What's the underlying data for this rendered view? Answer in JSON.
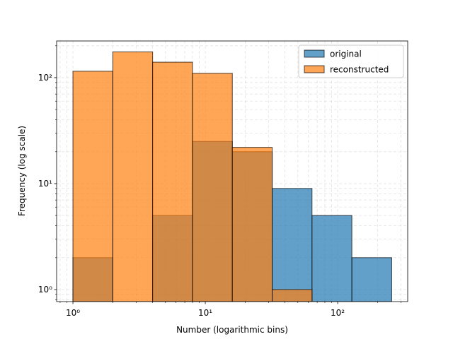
{
  "chart_data": {
    "type": "histogram",
    "xlabel": "Number (logarithmic bins)",
    "ylabel": "Frequency (log scale)",
    "bins": [
      1,
      2,
      4,
      8,
      16,
      32,
      64,
      128,
      256
    ],
    "series": [
      {
        "name": "original",
        "color": "#1f77b4",
        "values": [
          2,
          0,
          5,
          25,
          20,
          9,
          5,
          2
        ]
      },
      {
        "name": "reconstructed",
        "color": "#ff7f0e",
        "values": [
          115,
          175,
          140,
          110,
          22,
          1,
          0,
          0
        ]
      }
    ],
    "xlog": true,
    "ylog": true,
    "xlim": [
      0.753,
      338
    ],
    "ylim": [
      0.77,
      222
    ],
    "xticks": [
      {
        "value": 1,
        "label": "10⁰"
      },
      {
        "value": 10,
        "label": "10¹"
      },
      {
        "value": 100,
        "label": "10²"
      }
    ],
    "yticks": [
      {
        "value": 1,
        "label": "10⁰"
      },
      {
        "value": 10,
        "label": "10¹"
      },
      {
        "value": 100,
        "label": "10²"
      }
    ],
    "xminorticks": [
      0.8,
      0.9,
      2,
      3,
      4,
      5,
      6,
      7,
      8,
      9,
      20,
      30,
      40,
      50,
      60,
      70,
      80,
      90,
      200,
      300
    ],
    "yminorticks": [
      0.8,
      0.9,
      2,
      3,
      4,
      5,
      6,
      7,
      8,
      9,
      20,
      30,
      40,
      50,
      60,
      70,
      80,
      90,
      200
    ],
    "grid": true,
    "legend": "upper right"
  }
}
